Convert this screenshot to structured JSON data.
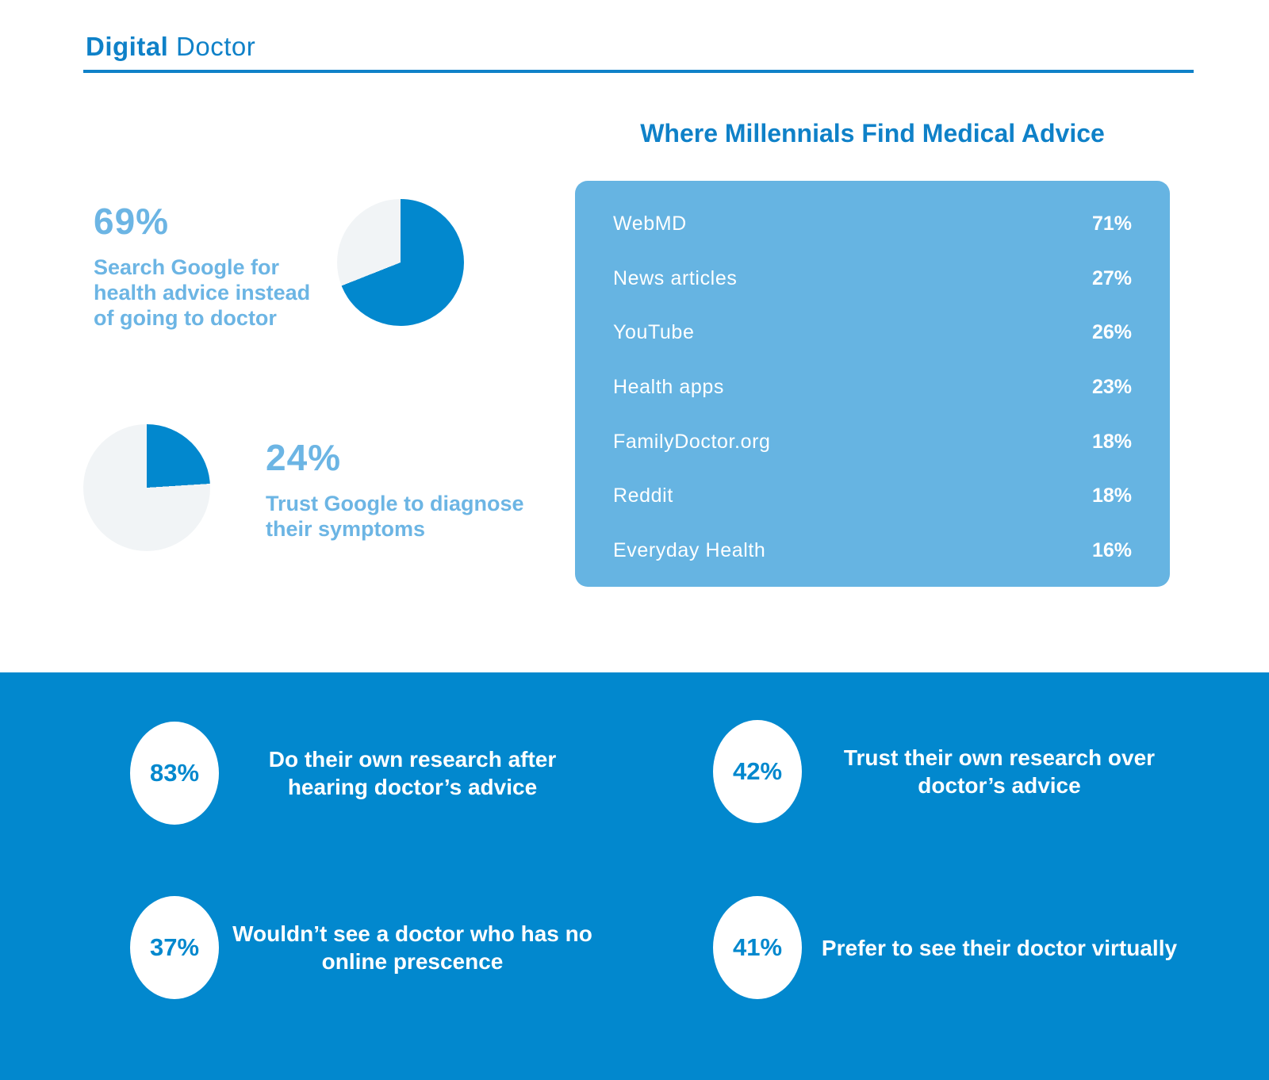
{
  "header": {
    "title_bold": "Digital",
    "title_light": "Doctor"
  },
  "colors": {
    "primary": "#0288ce",
    "header_blue": "#0f81c8",
    "light_blue": "#66b4e2",
    "stat_blue": "#6cb5e4",
    "pie_rest": "#f1f4f6",
    "white": "#ffffff"
  },
  "google_stats": [
    {
      "value": "69%",
      "percent": 69,
      "label": "Search Google for health advice instead of going to doctor"
    },
    {
      "value": "24%",
      "percent": 24,
      "label": "Trust Google to diagnose their symptoms"
    }
  ],
  "advice_table": {
    "title": "Where Millennials Find Medical Advice",
    "rows": [
      {
        "source": "WebMD",
        "percent": "71%"
      },
      {
        "source": "News articles",
        "percent": "27%"
      },
      {
        "source": "YouTube",
        "percent": "26%"
      },
      {
        "source": "Health apps",
        "percent": "23%"
      },
      {
        "source": "FamilyDoctor.org",
        "percent": "18%"
      },
      {
        "source": "Reddit",
        "percent": "18%"
      },
      {
        "source": "Everyday Health",
        "percent": "16%"
      }
    ]
  },
  "bottom_stats": [
    {
      "value": "83%",
      "label": "Do their own research after hearing doctor’s advice"
    },
    {
      "value": "42%",
      "label": "Trust their own research over doctor’s advice"
    },
    {
      "value": "37%",
      "label": "Wouldn’t see a doctor who has no online prescence"
    },
    {
      "value": "41%",
      "label": "Prefer to see their doctor virtually"
    }
  ],
  "chart_data": [
    {
      "type": "pie",
      "title": "Search Google for health advice instead of going to doctor",
      "labels": [
        "Search Google",
        "Other"
      ],
      "values": [
        69,
        31
      ]
    },
    {
      "type": "pie",
      "title": "Trust Google to diagnose their symptoms",
      "labels": [
        "Trust Google",
        "Other"
      ],
      "values": [
        24,
        76
      ]
    },
    {
      "type": "table",
      "title": "Where Millennials Find Medical Advice",
      "categories": [
        "WebMD",
        "News articles",
        "YouTube",
        "Health apps",
        "FamilyDoctor.org",
        "Reddit",
        "Everyday Health"
      ],
      "values": [
        71,
        27,
        26,
        23,
        18,
        18,
        16
      ],
      "unit": "%"
    },
    {
      "type": "table",
      "title": "Millennial attitudes toward doctors",
      "categories": [
        "Do their own research after hearing doctor’s advice",
        "Trust their own research over doctor’s advice",
        "Wouldn’t see a doctor who has no online prescence",
        "Prefer to see their doctor virtually"
      ],
      "values": [
        83,
        42,
        37,
        41
      ],
      "unit": "%"
    }
  ]
}
